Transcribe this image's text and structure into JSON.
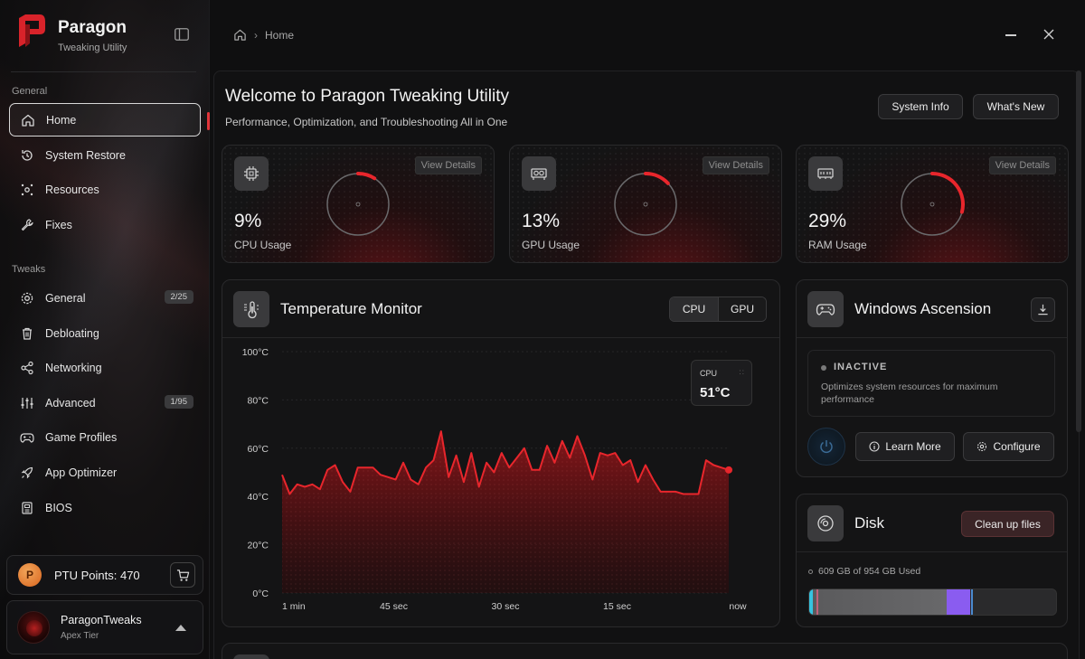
{
  "brand": {
    "title": "Paragon",
    "subtitle": "Tweaking Utility"
  },
  "sidebar": {
    "sections": [
      {
        "label": "General",
        "items": [
          {
            "label": "Home",
            "icon": "home-icon",
            "active": true
          },
          {
            "label": "System Restore",
            "icon": "restore-icon"
          },
          {
            "label": "Resources",
            "icon": "resources-icon"
          },
          {
            "label": "Fixes",
            "icon": "wrench-icon"
          }
        ]
      },
      {
        "label": "Tweaks",
        "items": [
          {
            "label": "General",
            "icon": "gear-icon",
            "badge": "2/25"
          },
          {
            "label": "Debloating",
            "icon": "trash-icon"
          },
          {
            "label": "Networking",
            "icon": "share-icon"
          },
          {
            "label": "Advanced",
            "icon": "sliders-icon",
            "badge": "1/95"
          },
          {
            "label": "Game Profiles",
            "icon": "gamepad-icon"
          },
          {
            "label": "App Optimizer",
            "icon": "rocket-icon"
          },
          {
            "label": "BIOS",
            "icon": "chip-icon"
          }
        ]
      }
    ],
    "points_label": "PTU Points: 470",
    "user": {
      "name": "ParagonTweaks",
      "tier": "Apex Tier"
    }
  },
  "breadcrumb": {
    "current": "Home"
  },
  "header": {
    "title": "Welcome to Paragon Tweaking Utility",
    "subtitle": "Performance, Optimization, and Troubleshooting All in One",
    "system_info_label": "System Info",
    "whats_new_label": "What's New"
  },
  "usage_cards": [
    {
      "value": "9%",
      "label": "CPU Usage",
      "details_label": "View Details",
      "percent": 9,
      "icon": "cpu-icon"
    },
    {
      "value": "13%",
      "label": "GPU Usage",
      "details_label": "View Details",
      "percent": 13,
      "icon": "gpu-icon"
    },
    {
      "value": "29%",
      "label": "RAM Usage",
      "details_label": "View Details",
      "percent": 29,
      "icon": "ram-icon"
    }
  ],
  "temperature": {
    "title": "Temperature Monitor",
    "toggle": [
      "CPU",
      "GPU"
    ],
    "selected": "CPU",
    "tooltip": {
      "label": "CPU",
      "value": "51°C"
    }
  },
  "chart_data": {
    "type": "area",
    "title": "",
    "y_ticks": [
      "100°C",
      "80°C",
      "60°C",
      "40°C",
      "20°C",
      "0°C"
    ],
    "x_ticks": [
      "1 min",
      "45 sec",
      "30 sec",
      "15 sec",
      "now"
    ],
    "ylim": [
      0,
      100
    ],
    "color": "#e8262c",
    "series": [
      {
        "values": [
          49,
          41,
          45,
          44,
          45,
          43,
          51,
          53,
          46,
          42,
          52,
          52,
          52,
          49,
          48,
          47,
          54,
          47,
          45,
          52,
          55,
          67,
          48,
          57,
          46,
          58,
          44,
          54,
          50,
          58,
          52,
          56,
          60,
          51,
          51,
          61,
          54,
          63,
          56,
          65,
          57,
          47,
          58,
          57,
          58,
          53,
          55,
          46,
          53,
          47,
          42,
          42,
          42,
          41,
          41,
          41,
          55,
          53,
          52,
          51
        ]
      }
    ]
  },
  "ascension": {
    "title": "Windows Ascension",
    "status": "INACTIVE",
    "description": "Optimizes system resources for maximum performance",
    "learn_more_label": "Learn More",
    "configure_label": "Configure"
  },
  "disk": {
    "title": "Disk",
    "cleanup_label": "Clean up files",
    "usage_text": "609 GB of 954 GB Used",
    "used_fraction": 0.638
  }
}
